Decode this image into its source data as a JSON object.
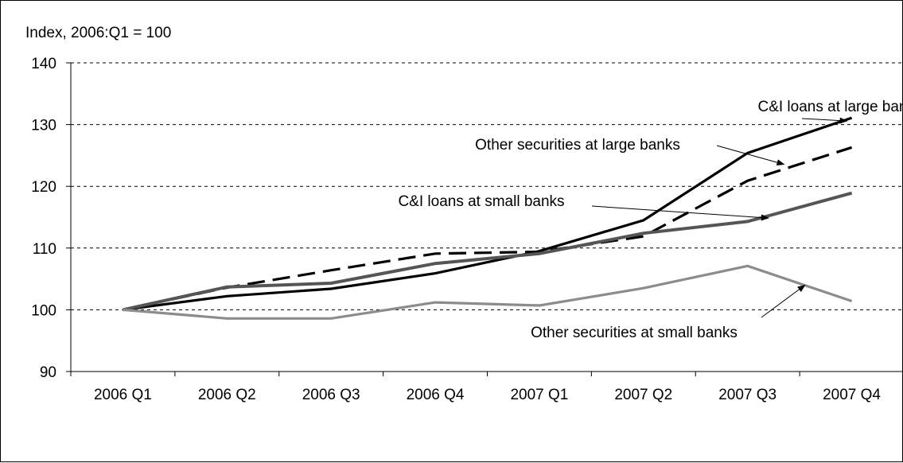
{
  "chart_data": {
    "type": "line",
    "title": "",
    "unit_label": "Index, 2006:Q1 = 100",
    "xlabel": "",
    "ylabel": "",
    "categories": [
      "2006 Q1",
      "2006 Q2",
      "2006 Q3",
      "2006 Q4",
      "2007 Q1",
      "2007 Q2",
      "2007 Q3",
      "2007 Q4"
    ],
    "ylim": [
      90,
      140
    ],
    "yticks": [
      90,
      100,
      110,
      120,
      130,
      140
    ],
    "grid": "horizontal dashed",
    "legend": "none (series labeled by annotations)",
    "series": [
      {
        "name": "C&I loans at large banks",
        "style": "solid",
        "color": "#000000",
        "values": [
          100,
          102.2,
          103.4,
          105.9,
          109.5,
          114.5,
          125.4,
          131.1
        ]
      },
      {
        "name": "Other securities at large banks",
        "style": "dashed",
        "color": "#000000",
        "values": [
          100,
          103.6,
          106.4,
          109.1,
          109.4,
          111.9,
          120.9,
          126.3
        ]
      },
      {
        "name": "C&I loans at small banks",
        "style": "solid",
        "color": "#555555",
        "values": [
          100,
          103.7,
          104.3,
          107.5,
          109.1,
          112.4,
          114.3,
          118.9
        ]
      },
      {
        "name": "Other securities at small banks",
        "style": "solid",
        "color": "#8c8c8c",
        "values": [
          100,
          98.6,
          98.6,
          101.2,
          100.7,
          103.5,
          107.1,
          101.4
        ]
      }
    ]
  }
}
